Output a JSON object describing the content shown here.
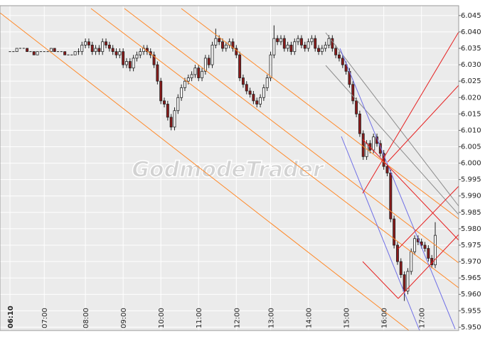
{
  "chart_data": {
    "type": "candlestick",
    "watermark": "GodmodeTrader",
    "categories": [
      "06:10",
      null,
      null,
      null,
      null,
      null,
      null,
      null,
      null,
      null,
      "07:00",
      null,
      null,
      null,
      null,
      null,
      null,
      null,
      null,
      null,
      null,
      null,
      "08:00",
      null,
      null,
      null,
      null,
      null,
      null,
      null,
      null,
      null,
      null,
      "09:00",
      null,
      null,
      null,
      null,
      null,
      null,
      null,
      null,
      null,
      null,
      "10:00",
      null,
      null,
      null,
      null,
      null,
      null,
      null,
      null,
      null,
      null,
      "11:00",
      null,
      null,
      null,
      null,
      null,
      null,
      null,
      null,
      null,
      null,
      "12:00",
      null,
      null,
      null,
      null,
      null,
      null,
      null,
      null,
      null,
      "13:00",
      null,
      null,
      null,
      null,
      null,
      null,
      null,
      null,
      null,
      null,
      "14:00",
      null,
      null,
      null,
      null,
      null,
      null,
      null,
      null,
      null,
      null,
      "15:00",
      null,
      null,
      null,
      null,
      null,
      null,
      null,
      null,
      null,
      null,
      "16:00",
      null,
      null,
      null,
      null,
      null,
      null,
      null,
      null,
      null,
      null,
      "17:00",
      null,
      null,
      null,
      null
    ],
    "open": [
      6.034,
      6.034,
      6.034,
      6.035,
      6.035,
      6.035,
      6.034,
      6.034,
      6.033,
      6.034,
      6.034,
      6.034,
      6.034,
      6.035,
      6.034,
      6.034,
      6.034,
      6.033,
      6.033,
      6.033,
      6.034,
      6.034,
      6.036,
      6.037,
      6.036,
      6.034,
      6.035,
      6.034,
      6.037,
      6.036,
      6.035,
      6.034,
      6.033,
      6.034,
      6.03,
      6.031,
      6.029,
      6.032,
      6.033,
      6.034,
      6.035,
      6.034,
      6.033,
      6.03,
      6.025,
      6.019,
      6.018,
      6.014,
      6.011,
      6.016,
      6.02,
      6.023,
      6.025,
      6.026,
      6.027,
      6.029,
      6.026,
      6.028,
      6.032,
      6.03,
      6.036,
      6.038,
      6.037,
      6.035,
      6.036,
      6.037,
      6.035,
      6.033,
      6.026,
      6.024,
      6.022,
      6.021,
      6.019,
      6.018,
      6.02,
      6.023,
      6.026,
      6.033,
      6.038,
      6.037,
      6.038,
      6.035,
      6.036,
      6.034,
      6.037,
      6.038,
      6.036,
      6.035,
      6.037,
      6.038,
      6.035,
      6.034,
      6.035,
      6.036,
      6.038,
      6.035,
      6.033,
      6.032,
      6.03,
      6.028,
      6.024,
      6.019,
      6.015,
      6.009,
      6.002,
      6.006,
      6.004,
      6.008,
      6.006,
      6.003,
      5.999,
      5.997,
      5.983,
      5.975,
      5.97,
      5.966,
      5.961,
      5.967,
      5.973,
      5.977,
      5.976,
      5.975,
      5.974,
      5.971,
      5.969
    ],
    "high": [
      6.034,
      6.034,
      6.035,
      6.035,
      6.035,
      6.035,
      6.034,
      6.034,
      6.034,
      6.034,
      6.034,
      6.034,
      6.035,
      6.035,
      6.034,
      6.034,
      6.034,
      6.033,
      6.033,
      6.034,
      6.035,
      6.037,
      6.038,
      6.038,
      6.037,
      6.036,
      6.036,
      6.038,
      6.038,
      6.037,
      6.036,
      6.035,
      6.035,
      6.035,
      6.032,
      6.032,
      6.033,
      6.034,
      6.035,
      6.036,
      6.036,
      6.035,
      6.034,
      6.031,
      6.026,
      6.02,
      6.019,
      6.015,
      6.017,
      6.021,
      6.024,
      6.026,
      6.027,
      6.028,
      6.03,
      6.03,
      6.029,
      6.033,
      6.033,
      6.037,
      6.041,
      6.039,
      6.038,
      6.037,
      6.038,
      6.038,
      6.036,
      6.034,
      6.027,
      6.025,
      6.023,
      6.022,
      6.02,
      6.021,
      6.024,
      6.027,
      6.034,
      6.042,
      6.039,
      6.039,
      6.039,
      6.037,
      6.037,
      6.038,
      6.039,
      6.039,
      6.037,
      6.038,
      6.039,
      6.039,
      6.036,
      6.036,
      6.037,
      6.039,
      6.039,
      6.036,
      6.034,
      6.033,
      6.031,
      6.029,
      6.025,
      6.02,
      6.016,
      6.01,
      6.007,
      6.007,
      6.009,
      6.009,
      6.007,
      6.004,
      6.0,
      5.998,
      5.984,
      5.976,
      5.971,
      5.967,
      5.968,
      5.974,
      5.978,
      5.978,
      5.977,
      5.976,
      5.975,
      5.972,
      5.982
    ],
    "low": [
      6.034,
      6.034,
      6.034,
      6.035,
      6.035,
      6.034,
      6.034,
      6.033,
      6.033,
      6.034,
      6.034,
      6.034,
      6.034,
      6.034,
      6.034,
      6.034,
      6.033,
      6.033,
      6.033,
      6.033,
      6.033,
      6.033,
      6.035,
      6.035,
      6.033,
      6.033,
      6.033,
      6.033,
      6.035,
      6.034,
      6.033,
      6.032,
      6.032,
      6.029,
      6.029,
      6.028,
      6.028,
      6.031,
      6.032,
      6.033,
      6.033,
      6.032,
      6.029,
      6.024,
      6.018,
      6.017,
      6.013,
      6.01,
      6.01,
      6.015,
      6.019,
      6.022,
      6.024,
      6.025,
      6.026,
      6.025,
      6.025,
      6.027,
      6.029,
      6.029,
      6.035,
      6.036,
      6.034,
      6.034,
      6.035,
      6.034,
      6.032,
      6.025,
      6.023,
      6.021,
      6.02,
      6.018,
      6.017,
      6.017,
      6.019,
      6.022,
      6.025,
      6.032,
      6.036,
      6.036,
      6.034,
      6.034,
      6.033,
      6.033,
      6.036,
      6.035,
      6.034,
      6.034,
      6.036,
      6.034,
      6.033,
      6.033,
      6.034,
      6.035,
      6.034,
      6.032,
      6.031,
      6.029,
      6.027,
      6.023,
      6.018,
      6.014,
      6.008,
      6.001,
      6.001,
      6.003,
      6.003,
      6.005,
      6.002,
      5.998,
      5.996,
      5.982,
      5.974,
      5.969,
      5.965,
      5.958,
      5.96,
      5.966,
      5.972,
      5.975,
      5.974,
      5.973,
      5.97,
      5.968,
      5.968
    ],
    "close": [
      6.034,
      6.034,
      6.035,
      6.035,
      6.035,
      6.034,
      6.034,
      6.033,
      6.034,
      6.034,
      6.034,
      6.034,
      6.035,
      6.034,
      6.034,
      6.034,
      6.033,
      6.033,
      6.033,
      6.034,
      6.034,
      6.036,
      6.037,
      6.036,
      6.034,
      6.035,
      6.034,
      6.037,
      6.036,
      6.035,
      6.034,
      6.033,
      6.034,
      6.03,
      6.031,
      6.029,
      6.032,
      6.033,
      6.034,
      6.035,
      6.034,
      6.033,
      6.03,
      6.025,
      6.019,
      6.018,
      6.014,
      6.011,
      6.016,
      6.02,
      6.023,
      6.025,
      6.026,
      6.027,
      6.029,
      6.026,
      6.028,
      6.032,
      6.03,
      6.036,
      6.038,
      6.037,
      6.035,
      6.036,
      6.037,
      6.035,
      6.033,
      6.026,
      6.024,
      6.022,
      6.021,
      6.019,
      6.018,
      6.02,
      6.023,
      6.026,
      6.033,
      6.038,
      6.037,
      6.038,
      6.035,
      6.036,
      6.034,
      6.037,
      6.038,
      6.036,
      6.035,
      6.037,
      6.038,
      6.035,
      6.034,
      6.035,
      6.036,
      6.038,
      6.035,
      6.033,
      6.032,
      6.03,
      6.028,
      6.024,
      6.019,
      6.015,
      6.009,
      6.002,
      6.006,
      6.004,
      6.008,
      6.006,
      6.003,
      5.999,
      5.997,
      5.983,
      5.975,
      5.97,
      5.966,
      5.961,
      5.967,
      5.973,
      5.977,
      5.976,
      5.975,
      5.974,
      5.971,
      5.969,
      5.978
    ],
    "up_color": "#ffffff",
    "down_color": "#8b1a1a",
    "grid": true,
    "ylim": [
      5.949,
      6.048
    ],
    "yticks": [
      {
        "value": 5.95,
        "label": "5.950"
      },
      5.955,
      {
        "value": 5.96,
        "label": "5.960"
      },
      5.965,
      {
        "value": 5.97,
        "label": "5.970"
      },
      5.975,
      {
        "value": 5.98,
        "label": "5.980"
      },
      5.985,
      {
        "value": 5.99,
        "label": "5.990"
      },
      5.995,
      {
        "value": 6.0,
        "label": "6.000"
      },
      6.005,
      {
        "value": 6.01,
        "label": "6.010"
      },
      6.015,
      {
        "value": 6.02,
        "label": "6.020"
      },
      6.025,
      {
        "value": 6.03,
        "label": "6.030"
      },
      6.035,
      {
        "value": 6.04,
        "label": "6.040"
      },
      6.045
    ]
  }
}
